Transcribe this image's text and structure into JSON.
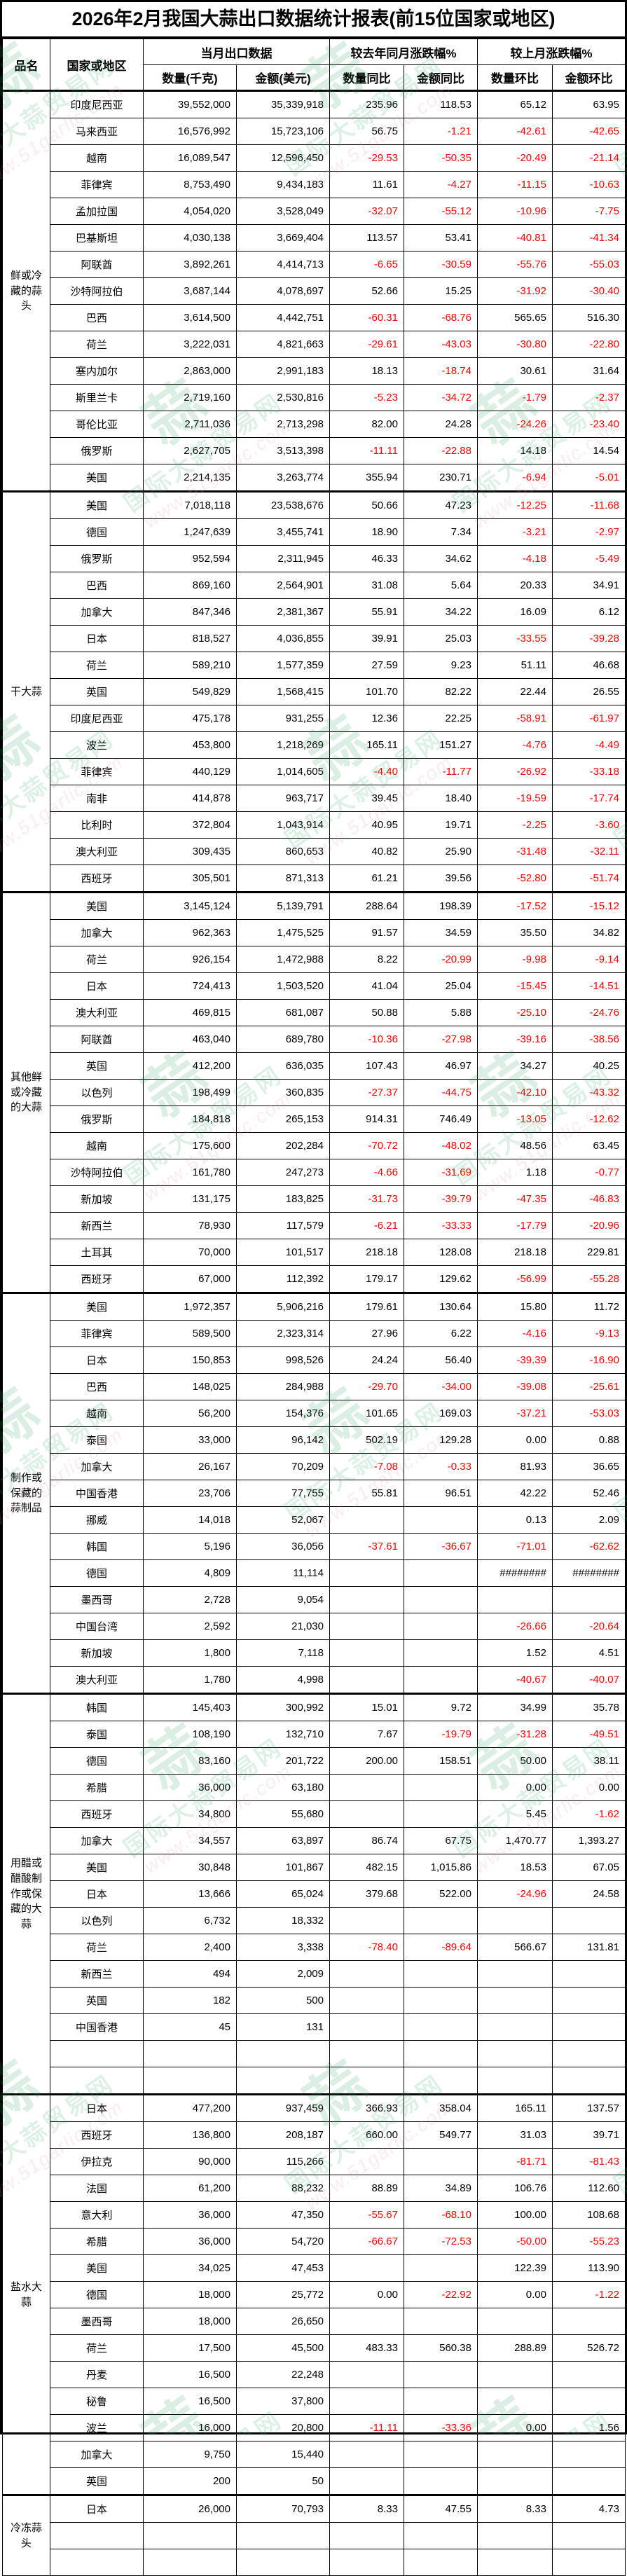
{
  "title": "2026年2月我国大蒜出口数据统计报表(前15位国家或地区)",
  "header": {
    "product": "品名",
    "country": "国家或地区",
    "current_month_group": "当月出口数据",
    "yoy_group": "较去年同月涨跌幅%",
    "mom_group": "较上月涨跌幅%",
    "qty": "数量(千克)",
    "amount": "金额(美元)",
    "qty_yoy": "数量同比",
    "amount_yoy": "金额同比",
    "qty_mom": "数量环比",
    "amount_mom": "金额环比"
  },
  "colors": {
    "negative_value": "#ff0000",
    "positive_value": "#000000",
    "border": "#000000",
    "watermark_green": "#3aa866",
    "watermark_pink": "#ee8f9c"
  },
  "watermark": {
    "logo_glyph": "蒜",
    "site_name": "国际大蒜贸易网",
    "site_url": "www.51garlic.com"
  },
  "categories": [
    {
      "name": "鲜或冷藏的蒜头",
      "rows": [
        [
          "印度尼西亚",
          "39,552,000",
          "35,339,918",
          "235.96",
          "118.53",
          "65.12",
          "63.95"
        ],
        [
          "马来西亚",
          "16,576,992",
          "15,723,106",
          "56.75",
          "-1.21",
          "-42.61",
          "-42.65"
        ],
        [
          "越南",
          "16,089,547",
          "12,596,450",
          "-29.53",
          "-50.35",
          "-20.49",
          "-21.14"
        ],
        [
          "菲律宾",
          "8,753,490",
          "9,434,183",
          "11.61",
          "-4.27",
          "-11.15",
          "-10.63"
        ],
        [
          "孟加拉国",
          "4,054,020",
          "3,528,049",
          "-32.07",
          "-55.12",
          "-10.96",
          "-7.75"
        ],
        [
          "巴基斯坦",
          "4,030,138",
          "3,669,404",
          "113.57",
          "53.41",
          "-40.81",
          "-41.34"
        ],
        [
          "阿联酋",
          "3,892,261",
          "4,414,713",
          "-6.65",
          "-30.59",
          "-55.76",
          "-55.03"
        ],
        [
          "沙特阿拉伯",
          "3,687,144",
          "4,078,697",
          "52.66",
          "15.25",
          "-31.92",
          "-30.40"
        ],
        [
          "巴西",
          "3,614,500",
          "4,442,751",
          "-60.31",
          "-68.76",
          "565.65",
          "516.30"
        ],
        [
          "荷兰",
          "3,222,031",
          "4,821,663",
          "-29.61",
          "-43.03",
          "-30.80",
          "-22.80"
        ],
        [
          "塞内加尔",
          "2,863,000",
          "2,991,183",
          "18.13",
          "-18.74",
          "30.61",
          "31.64"
        ],
        [
          "斯里兰卡",
          "2,719,160",
          "2,530,816",
          "-5.23",
          "-34.72",
          "-1.79",
          "-2.37"
        ],
        [
          "哥伦比亚",
          "2,711,036",
          "2,713,298",
          "82.00",
          "24.28",
          "-24.26",
          "-23.40"
        ],
        [
          "俄罗斯",
          "2,627,705",
          "3,513,398",
          "-11.11",
          "-22.88",
          "14.18",
          "14.54"
        ],
        [
          "美国",
          "2,214,135",
          "3,263,774",
          "355.94",
          "230.71",
          "-6.94",
          "-5.01"
        ]
      ]
    },
    {
      "name": "干大蒜",
      "rows": [
        [
          "美国",
          "7,018,118",
          "23,538,676",
          "50.66",
          "47.23",
          "-12.25",
          "-11.68"
        ],
        [
          "德国",
          "1,247,639",
          "3,455,741",
          "18.90",
          "7.34",
          "-3.21",
          "-2.97"
        ],
        [
          "俄罗斯",
          "952,594",
          "2,311,945",
          "46.33",
          "34.62",
          "-4.18",
          "-5.49"
        ],
        [
          "巴西",
          "869,160",
          "2,564,901",
          "31.08",
          "5.64",
          "20.33",
          "34.91"
        ],
        [
          "加拿大",
          "847,346",
          "2,381,367",
          "55.91",
          "34.22",
          "16.09",
          "6.12"
        ],
        [
          "日本",
          "818,527",
          "4,036,855",
          "39.91",
          "25.03",
          "-33.55",
          "-39.28"
        ],
        [
          "荷兰",
          "589,210",
          "1,577,359",
          "27.59",
          "9.23",
          "51.11",
          "46.68"
        ],
        [
          "英国",
          "549,829",
          "1,568,415",
          "101.70",
          "82.22",
          "22.44",
          "26.55"
        ],
        [
          "印度尼西亚",
          "475,178",
          "931,255",
          "12.36",
          "22.25",
          "-58.91",
          "-61.97"
        ],
        [
          "波兰",
          "453,800",
          "1,218,269",
          "165.11",
          "151.27",
          "-4.76",
          "-4.49"
        ],
        [
          "菲律宾",
          "440,129",
          "1,014,605",
          "-4.40",
          "-11.77",
          "-26.92",
          "-33.18"
        ],
        [
          "南非",
          "414,878",
          "963,717",
          "39.45",
          "18.40",
          "-19.59",
          "-17.74"
        ],
        [
          "比利时",
          "372,804",
          "1,043,914",
          "40.95",
          "19.71",
          "-2.25",
          "-3.60"
        ],
        [
          "澳大利亚",
          "309,435",
          "860,653",
          "40.82",
          "25.90",
          "-31.48",
          "-32.11"
        ],
        [
          "西班牙",
          "305,501",
          "871,313",
          "61.21",
          "39.56",
          "-52.80",
          "-51.74"
        ]
      ]
    },
    {
      "name": "其他鲜或冷藏的大蒜",
      "rows": [
        [
          "美国",
          "3,145,124",
          "5,139,791",
          "288.64",
          "198.39",
          "-17.52",
          "-15.12"
        ],
        [
          "加拿大",
          "962,363",
          "1,475,525",
          "91.57",
          "34.59",
          "35.50",
          "34.82"
        ],
        [
          "荷兰",
          "926,154",
          "1,472,988",
          "8.22",
          "-20.99",
          "-9.98",
          "-9.14"
        ],
        [
          "日本",
          "724,413",
          "1,503,520",
          "41.04",
          "25.04",
          "-15.45",
          "-14.51"
        ],
        [
          "澳大利亚",
          "469,815",
          "681,087",
          "50.88",
          "5.88",
          "-25.10",
          "-24.76"
        ],
        [
          "阿联酋",
          "463,040",
          "689,780",
          "-10.36",
          "-27.98",
          "-39.16",
          "-38.56"
        ],
        [
          "英国",
          "412,200",
          "636,035",
          "107.43",
          "46.97",
          "34.27",
          "40.25"
        ],
        [
          "以色列",
          "198,499",
          "360,835",
          "-27.37",
          "-44.75",
          "-42.10",
          "-43.32"
        ],
        [
          "俄罗斯",
          "184,818",
          "265,153",
          "914.31",
          "746.49",
          "-13.05",
          "-12.62"
        ],
        [
          "越南",
          "175,600",
          "202,284",
          "-70.72",
          "-48.02",
          "48.56",
          "63.45"
        ],
        [
          "沙特阿拉伯",
          "161,780",
          "247,273",
          "-4.66",
          "-31.69",
          "1.18",
          "-0.77"
        ],
        [
          "新加坡",
          "131,175",
          "183,825",
          "-31.73",
          "-39.79",
          "-47.35",
          "-46.83"
        ],
        [
          "新西兰",
          "78,930",
          "117,579",
          "-6.21",
          "-33.33",
          "-17.79",
          "-20.96"
        ],
        [
          "土耳其",
          "70,000",
          "101,517",
          "218.18",
          "128.08",
          "218.18",
          "229.81"
        ],
        [
          "西班牙",
          "67,000",
          "112,392",
          "179.17",
          "129.62",
          "-56.99",
          "-55.28"
        ]
      ]
    },
    {
      "name": "制作或保藏的蒜制品",
      "rows": [
        [
          "美国",
          "1,972,357",
          "5,906,216",
          "179.61",
          "130.64",
          "15.80",
          "11.72"
        ],
        [
          "菲律宾",
          "589,500",
          "2,323,314",
          "27.96",
          "6.22",
          "-4.16",
          "-9.13"
        ],
        [
          "日本",
          "150,853",
          "998,526",
          "24.24",
          "56.40",
          "-39.39",
          "-16.90"
        ],
        [
          "巴西",
          "148,025",
          "284,988",
          "-29.70",
          "-34.00",
          "-39.08",
          "-25.61"
        ],
        [
          "越南",
          "56,200",
          "154,376",
          "101.65",
          "169.03",
          "-37.21",
          "-53.03"
        ],
        [
          "泰国",
          "33,000",
          "96,142",
          "502.19",
          "129.28",
          "0.00",
          "0.88"
        ],
        [
          "加拿大",
          "26,167",
          "70,209",
          "-7.08",
          "-0.33",
          "81.93",
          "36.65"
        ],
        [
          "中国香港",
          "23,706",
          "77,755",
          "55.81",
          "96.51",
          "42.22",
          "52.46"
        ],
        [
          "挪威",
          "14,018",
          "52,067",
          "",
          "",
          "0.13",
          "2.09"
        ],
        [
          "韩国",
          "5,196",
          "36,056",
          "-37.61",
          "-36.67",
          "-71.01",
          "-62.62"
        ],
        [
          "德国",
          "4,809",
          "11,114",
          "",
          "",
          "########",
          "########"
        ],
        [
          "墨西哥",
          "2,728",
          "9,054",
          "",
          "",
          "",
          ""
        ],
        [
          "中国台湾",
          "2,592",
          "21,030",
          "",
          "",
          "-26.66",
          "-20.64"
        ],
        [
          "新加坡",
          "1,800",
          "7,118",
          "",
          "",
          "1.52",
          "4.51"
        ],
        [
          "澳大利亚",
          "1,780",
          "4,998",
          "",
          "",
          "-40.67",
          "-40.07"
        ]
      ]
    },
    {
      "name": "用醋或醋酸制作或保藏的大蒜",
      "rows": [
        [
          "韩国",
          "145,403",
          "300,992",
          "15.01",
          "9.72",
          "34.99",
          "35.78"
        ],
        [
          "泰国",
          "108,190",
          "132,710",
          "7.67",
          "-19.79",
          "-31.28",
          "-49.51"
        ],
        [
          "德国",
          "83,160",
          "201,722",
          "200.00",
          "158.51",
          "50.00",
          "38.11"
        ],
        [
          "希腊",
          "36,000",
          "63,180",
          "",
          "",
          "0.00",
          "0.00"
        ],
        [
          "西班牙",
          "34,800",
          "55,680",
          "",
          "",
          "5.45",
          "-1.62"
        ],
        [
          "加拿大",
          "34,557",
          "63,897",
          "86.74",
          "67.75",
          "1,470.77",
          "1,393.27"
        ],
        [
          "美国",
          "30,848",
          "101,867",
          "482.15",
          "1,015.86",
          "18.53",
          "67.05"
        ],
        [
          "日本",
          "13,666",
          "65,024",
          "379.68",
          "522.00",
          "-24.96",
          "24.58"
        ],
        [
          "以色列",
          "6,732",
          "18,332",
          "",
          "",
          "",
          ""
        ],
        [
          "荷兰",
          "2,400",
          "3,338",
          "-78.40",
          "-89.64",
          "566.67",
          "131.81"
        ],
        [
          "新西兰",
          "494",
          "2,009",
          "",
          "",
          "",
          ""
        ],
        [
          "英国",
          "182",
          "500",
          "",
          "",
          "",
          ""
        ],
        [
          "中国香港",
          "45",
          "131",
          "",
          "",
          "",
          ""
        ],
        [
          "",
          "",
          "",
          "",
          "",
          "",
          ""
        ],
        [
          "",
          "",
          "",
          "",
          "",
          "",
          ""
        ]
      ]
    },
    {
      "name": "盐水大蒜",
      "rows": [
        [
          "日本",
          "477,200",
          "937,459",
          "366.93",
          "358.04",
          "165.11",
          "137.57"
        ],
        [
          "西班牙",
          "136,800",
          "208,187",
          "660.00",
          "549.77",
          "31.03",
          "39.71"
        ],
        [
          "伊拉克",
          "90,000",
          "115,266",
          "",
          "",
          "-81.71",
          "-81.43"
        ],
        [
          "法国",
          "61,200",
          "88,232",
          "88.89",
          "34.89",
          "106.76",
          "112.60"
        ],
        [
          "意大利",
          "36,000",
          "47,350",
          "-55.67",
          "-68.10",
          "100.00",
          "108.68"
        ],
        [
          "希腊",
          "36,000",
          "54,720",
          "-66.67",
          "-72.53",
          "-50.00",
          "-55.23"
        ],
        [
          "美国",
          "34,025",
          "47,453",
          "",
          "",
          "122.39",
          "113.90"
        ],
        [
          "德国",
          "18,000",
          "25,772",
          "0.00",
          "-22.92",
          "0.00",
          "-1.22"
        ],
        [
          "墨西哥",
          "18,000",
          "26,650",
          "",
          "",
          "",
          ""
        ],
        [
          "荷兰",
          "17,500",
          "45,500",
          "483.33",
          "560.38",
          "288.89",
          "526.72"
        ],
        [
          "丹麦",
          "16,500",
          "22,248",
          "",
          "",
          "",
          ""
        ],
        [
          "秘鲁",
          "16,500",
          "37,800",
          "",
          "",
          "",
          ""
        ],
        [
          "波兰",
          "16,000",
          "20,800",
          "-11.11",
          "-33.36",
          "0.00",
          "1.56"
        ],
        [
          "加拿大",
          "9,750",
          "15,440",
          "",
          "",
          "",
          ""
        ],
        [
          "英国",
          "200",
          "50",
          "",
          "",
          "",
          ""
        ]
      ]
    },
    {
      "name": "冷冻蒜头",
      "rows": [
        [
          "日本",
          "26,000",
          "70,793",
          "8.33",
          "47.55",
          "8.33",
          "4.73"
        ],
        [
          "",
          "",
          "",
          "",
          "",
          "",
          ""
        ],
        [
          "",
          "",
          "",
          "",
          "",
          "",
          ""
        ]
      ]
    }
  ]
}
